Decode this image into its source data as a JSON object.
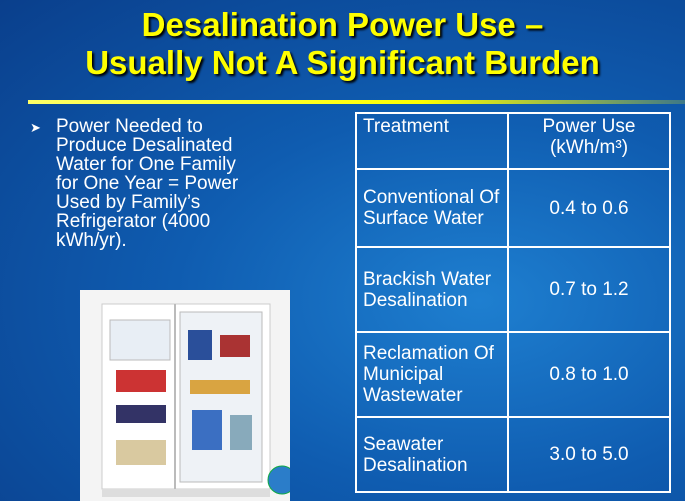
{
  "header": {
    "title_lines": [
      "Desalination Power Use –",
      "Usually Not A Significant Burden"
    ]
  },
  "bullet": {
    "lines": [
      "Power Needed to",
      "Produce Desalinated",
      "Water for One Family",
      "for One Year = Power",
      "Used by Family’s",
      "Refrigerator (4000",
      "kWh/yr)."
    ]
  },
  "table": {
    "header": [
      "Treatment",
      "Power Use (kWh/m³)"
    ],
    "rows": [
      [
        "Conventional Of Surface Water",
        "0.4 to 0.6"
      ],
      [
        "Brackish Water Desalination",
        "0.7 to 1.2"
      ],
      [
        "Reclamation Of Municipal Wastewater",
        "0.8 to 1.0"
      ],
      [
        "Seawater Desalination",
        "3.0 to 5.0"
      ]
    ]
  }
}
